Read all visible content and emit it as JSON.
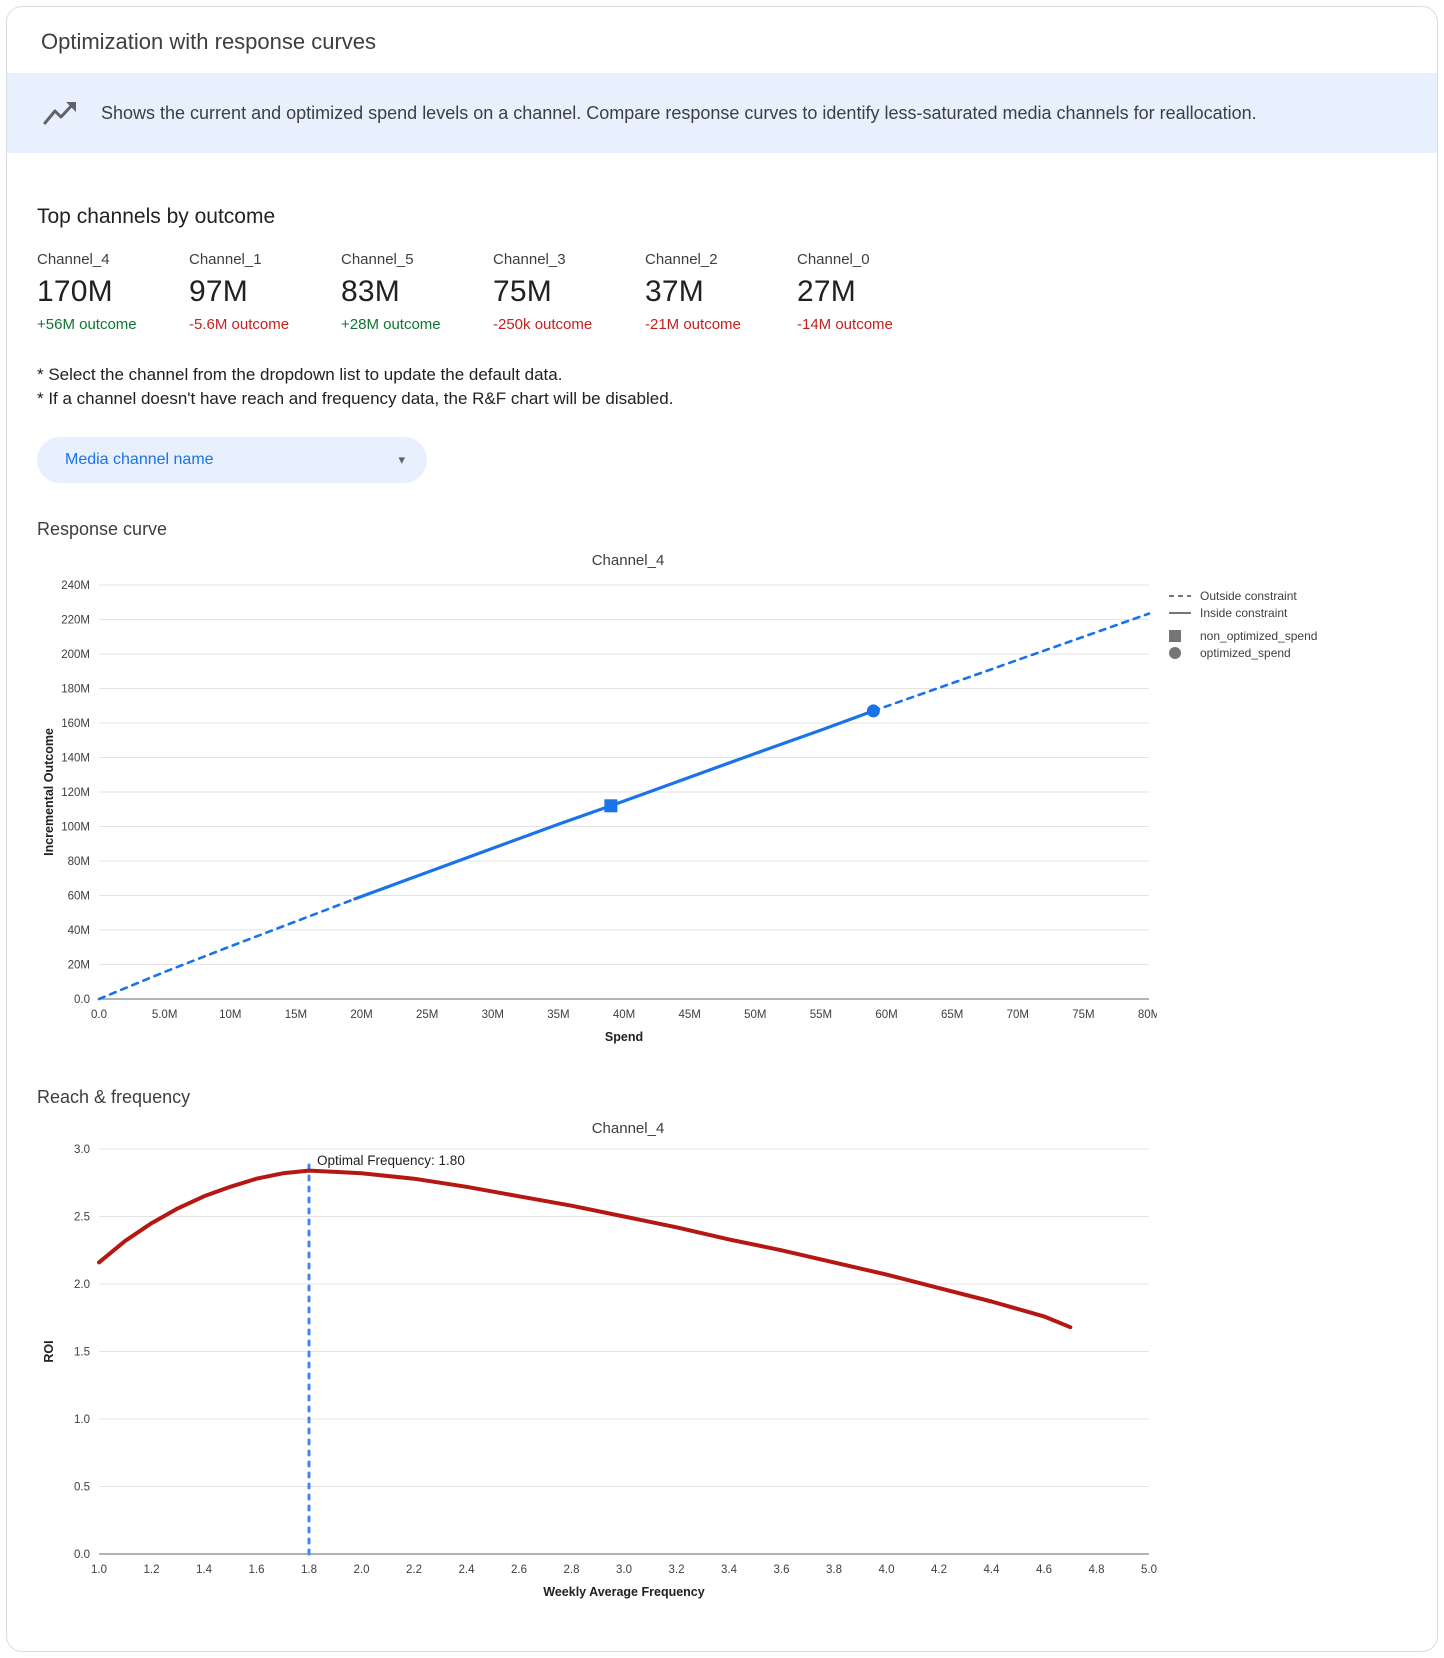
{
  "window": {
    "title": "Optimization with response curves"
  },
  "banner": {
    "text": "Shows the current and optimized spend levels on a channel. Compare response curves to identify less-saturated media channels for reallocation."
  },
  "icons": {
    "banner_icon": "trending-up-chart",
    "caret_glyph": "▾"
  },
  "colors": {
    "positive": "#137333",
    "negative": "#c5221f",
    "accent_blue": "#1a73e8",
    "banner_bg": "#e8f0fe",
    "chart_blue": "#1a73e8",
    "chart_red": "#b51712",
    "vline_blue": "#4285f4",
    "legend_gray": "#757575"
  },
  "top_channels": {
    "heading": "Top channels by outcome",
    "items": [
      {
        "name": "Channel_4",
        "value": "170M",
        "delta": "+56M outcome",
        "positive": true
      },
      {
        "name": "Channel_1",
        "value": "97M",
        "delta": "-5.6M outcome",
        "positive": false
      },
      {
        "name": "Channel_5",
        "value": "83M",
        "delta": "+28M outcome",
        "positive": true
      },
      {
        "name": "Channel_3",
        "value": "75M",
        "delta": "-250k outcome",
        "positive": false
      },
      {
        "name": "Channel_2",
        "value": "37M",
        "delta": "-21M outcome",
        "positive": false
      },
      {
        "name": "Channel_0",
        "value": "27M",
        "delta": "-14M outcome",
        "positive": false
      }
    ]
  },
  "notes": {
    "line1": "* Select the channel from the dropdown list to update the default data.",
    "line2": "* If a channel doesn't have reach and frequency data, the R&F chart will be disabled."
  },
  "dropdown": {
    "value": "Media channel name"
  },
  "sections": {
    "response_curve": "Response curve",
    "reach_frequency": "Reach & frequency"
  },
  "chart_data": [
    {
      "type": "line",
      "title": "Channel_4",
      "xlabel": "Spend",
      "ylabel": "Incremental Outcome",
      "units": "millions",
      "xlim": [
        0,
        80
      ],
      "ylim": [
        0,
        240
      ],
      "x_tick_values": [
        0,
        5,
        10,
        15,
        20,
        25,
        30,
        35,
        40,
        45,
        50,
        55,
        60,
        65,
        70,
        75,
        80
      ],
      "x_tick_labels": [
        "0.0",
        "5.0M",
        "10M",
        "15M",
        "20M",
        "25M",
        "30M",
        "35M",
        "40M",
        "45M",
        "50M",
        "55M",
        "60M",
        "65M",
        "70M",
        "75M",
        "80M"
      ],
      "y_tick_values": [
        0,
        20,
        40,
        60,
        80,
        100,
        120,
        140,
        160,
        180,
        200,
        220,
        240
      ],
      "y_tick_labels": [
        "0.0",
        "20M",
        "40M",
        "60M",
        "80M",
        "100M",
        "120M",
        "140M",
        "160M",
        "180M",
        "200M",
        "220M",
        "240M"
      ],
      "constraint_range": [
        19.5,
        59
      ],
      "spend": [
        0,
        5,
        10,
        15,
        19.5,
        25,
        30,
        35,
        39,
        45,
        50,
        55,
        59,
        65,
        70,
        75,
        80
      ],
      "outcome": [
        0,
        15.7,
        30.5,
        45.0,
        58.0,
        73.4,
        87.4,
        101.3,
        112.0,
        128.6,
        142.3,
        155.9,
        167.0,
        183.1,
        196.6,
        210.0,
        223.4
      ],
      "points": {
        "non_optimized_spend": {
          "spend": 39,
          "outcome": 112,
          "shape": "square"
        },
        "optimized_spend": {
          "spend": 59,
          "outcome": 167,
          "shape": "circle"
        }
      },
      "legend": [
        {
          "label": "Outside constraint",
          "glyph": "dashed-line"
        },
        {
          "label": "Inside constraint",
          "glyph": "solid-line"
        },
        {
          "label": "non_optimized_spend",
          "glyph": "square"
        },
        {
          "label": "optimized_spend",
          "glyph": "circle"
        }
      ]
    },
    {
      "type": "line",
      "title": "Channel_4",
      "xlabel": "Weekly Average Frequency",
      "ylabel": "ROI",
      "xlim": [
        1.0,
        5.0
      ],
      "ylim": [
        0.0,
        3.0
      ],
      "x_tick_values": [
        1.0,
        1.2,
        1.4,
        1.6,
        1.8,
        2.0,
        2.2,
        2.4,
        2.6,
        2.8,
        3.0,
        3.2,
        3.4,
        3.6,
        3.8,
        4.0,
        4.2,
        4.4,
        4.6,
        4.8,
        5.0
      ],
      "x_tick_labels": [
        "1.0",
        "1.2",
        "1.4",
        "1.6",
        "1.8",
        "2.0",
        "2.2",
        "2.4",
        "2.6",
        "2.8",
        "3.0",
        "3.2",
        "3.4",
        "3.6",
        "3.8",
        "4.0",
        "4.2",
        "4.4",
        "4.6",
        "4.8",
        "5.0"
      ],
      "y_tick_values": [
        0.0,
        0.5,
        1.0,
        1.5,
        2.0,
        2.5,
        3.0
      ],
      "y_tick_labels": [
        "0.0",
        "0.5",
        "1.0",
        "1.5",
        "2.0",
        "2.5",
        "3.0"
      ],
      "frequency": [
        1.0,
        1.1,
        1.2,
        1.3,
        1.4,
        1.5,
        1.6,
        1.7,
        1.8,
        1.9,
        2.0,
        2.2,
        2.4,
        2.6,
        2.8,
        3.0,
        3.2,
        3.4,
        3.6,
        3.8,
        4.0,
        4.2,
        4.4,
        4.6,
        4.7
      ],
      "roi": [
        2.16,
        2.32,
        2.45,
        2.56,
        2.65,
        2.72,
        2.78,
        2.82,
        2.84,
        2.83,
        2.82,
        2.78,
        2.72,
        2.65,
        2.58,
        2.5,
        2.42,
        2.33,
        2.25,
        2.16,
        2.07,
        1.97,
        1.87,
        1.76,
        1.68
      ],
      "optimal_frequency": 1.8,
      "annotation": "Optimal Frequency: 1.80"
    }
  ]
}
